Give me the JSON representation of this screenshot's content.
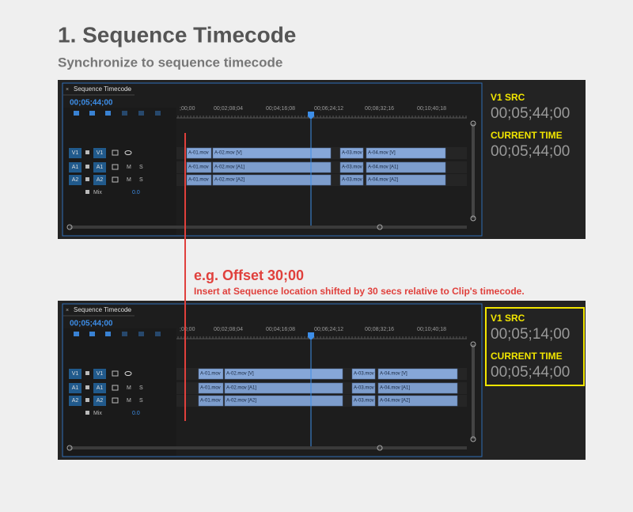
{
  "header": {
    "title": "1. Sequence Timecode",
    "subtitle": "Synchronize to sequence timecode"
  },
  "annotation": {
    "title": "e.g. Offset 30;00",
    "note": "Insert at Sequence location shifted by 30 secs relative to Clip's timecode."
  },
  "panels": [
    {
      "tab": "Sequence Timecode",
      "timecode": "00;05;44;00",
      "ruler": [
        ";00;00",
        "00;02;08;04",
        "00;04;16;08",
        "00;06;24;12",
        "00;08;32;16",
        "00;10;40;18"
      ],
      "tracks": [
        {
          "src": "V1",
          "dst": "V1",
          "clips": [
            "A-01.mov",
            "A-02.mov [V]",
            "A-03.mov",
            "A-04.mov [V]"
          ]
        },
        {
          "src": "A1",
          "dst": "A1",
          "mute": "M",
          "solo": "S",
          "clips": [
            "A-01.mov",
            "A-02.mov [A1]",
            "A-03.mov",
            "A-04.mov [A1]"
          ]
        },
        {
          "src": "A2",
          "dst": "A2",
          "mute": "M",
          "solo": "S",
          "clips": [
            "A-01.mov",
            "A-02.mov [A2]",
            "A-03.mov",
            "A-04.mov [A2]"
          ]
        }
      ],
      "mix": {
        "label": "Mix",
        "value": "0.0"
      },
      "side": {
        "src_label": "V1 SRC",
        "src_value": "00;05;44;00",
        "time_label": "CURRENT TIME",
        "time_value": "00;05;44;00"
      }
    },
    {
      "tab": "Sequence Timecode",
      "timecode": "00;05;44;00",
      "ruler": [
        ";00;00",
        "00;02;08;04",
        "00;04;16;08",
        "00;06;24;12",
        "00;08;32;16",
        "00;10;40;18"
      ],
      "tracks": [
        {
          "src": "V1",
          "dst": "V1",
          "clips": [
            "A-01.mov",
            "A-02.mov [V]",
            "A-03.mov",
            "A-04.mov [V]"
          ]
        },
        {
          "src": "A1",
          "dst": "A1",
          "mute": "M",
          "solo": "S",
          "clips": [
            "A-01.mov",
            "A-02.mov [A1]",
            "A-03.mov",
            "A-04.mov [A1]"
          ]
        },
        {
          "src": "A2",
          "dst": "A2",
          "mute": "M",
          "solo": "S",
          "clips": [
            "A-01.mov",
            "A-02.mov [A2]",
            "A-03.mov",
            "A-04.mov [A2]"
          ]
        }
      ],
      "mix": {
        "label": "Mix",
        "value": "0.0"
      },
      "side": {
        "src_label": "V1 SRC",
        "src_value": "00;05;14;00",
        "time_label": "CURRENT TIME",
        "time_value": "00;05;44;00"
      }
    }
  ]
}
